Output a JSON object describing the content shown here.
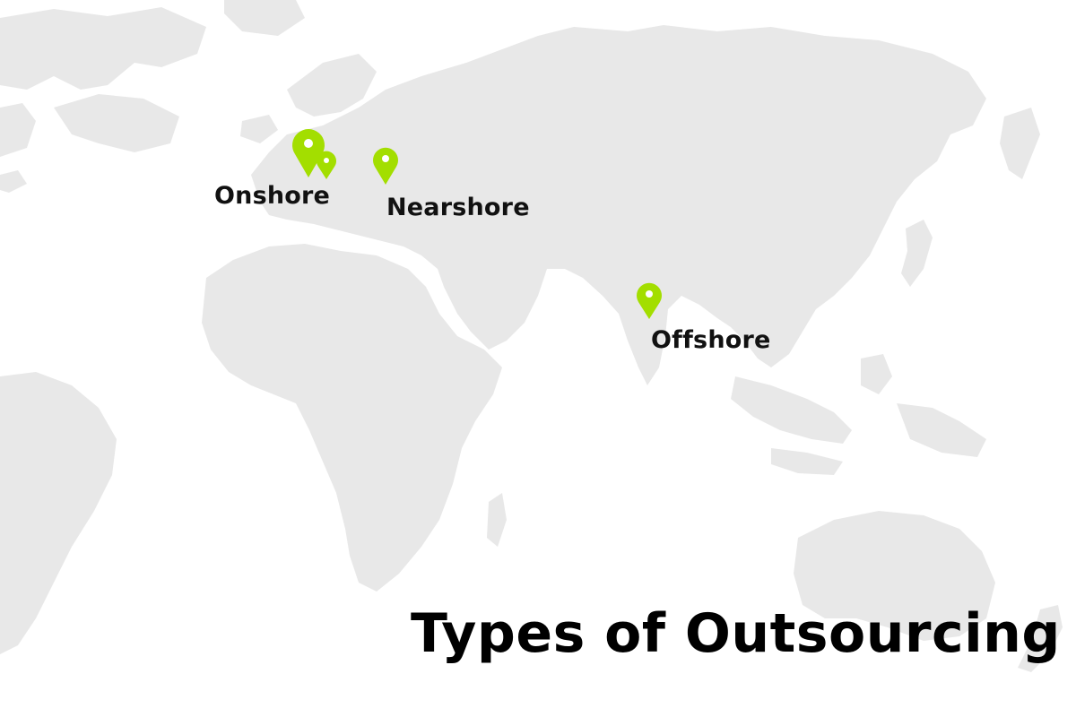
{
  "map": {
    "land_color": "#e8e8e8",
    "background_color": "#ffffff",
    "pin_color": "#a3de00",
    "locations": [
      {
        "name": "onshore",
        "label": "Onshore",
        "icon": "map-pin-icon"
      },
      {
        "name": "nearshore",
        "label": "Nearshore",
        "icon": "map-pin-icon"
      },
      {
        "name": "offshore",
        "label": "Offshore",
        "icon": "map-pin-icon"
      }
    ]
  },
  "title": "Types of Outsourcing"
}
